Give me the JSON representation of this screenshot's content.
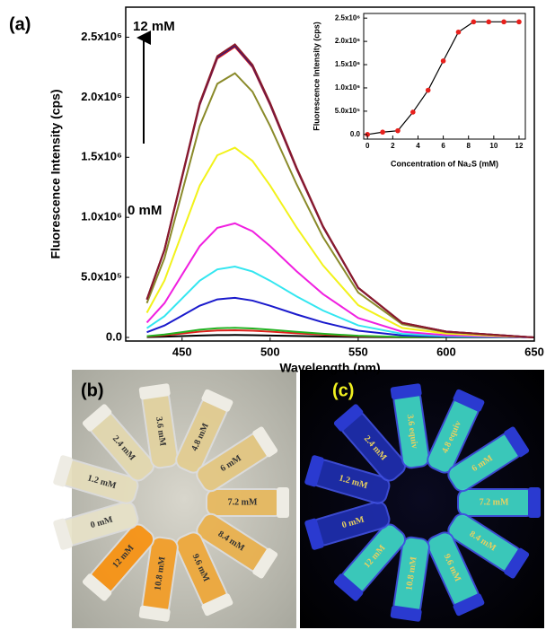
{
  "chart_data": [
    {
      "type": "line",
      "panel": "(a)",
      "xlabel": "Wavelength (nm)",
      "ylabel": "Fluorescence Intensity (cps)",
      "annotations": [
        "12 mM",
        "0 mM"
      ],
      "xlim": [
        418,
        650
      ],
      "xticks": [
        450,
        500,
        550,
        600,
        650
      ],
      "ylim": [
        -30000,
        2750000
      ],
      "yticks": [
        {
          "value": 0,
          "label": "0.0"
        },
        {
          "value": 500000,
          "label": "5.0x10⁵"
        },
        {
          "value": 1000000,
          "label": "1.0x10⁶"
        },
        {
          "value": 1500000,
          "label": "1.5x10⁶"
        },
        {
          "value": 2000000,
          "label": "2.0x10⁶"
        },
        {
          "value": 2500000,
          "label": "2.5x10⁶"
        }
      ],
      "x": [
        430,
        440,
        450,
        460,
        470,
        480,
        490,
        500,
        515,
        530,
        550,
        575,
        600,
        650
      ],
      "series": [
        {
          "color": "#000000",
          "values": [
            2600,
            6000,
            11000,
            16000,
            19200,
            20000,
            18600,
            16000,
            11600,
            7600,
            3400,
            1000,
            400,
            0
          ]
        },
        {
          "color": "#e0201c",
          "values": [
            7800,
            18000,
            33000,
            48000,
            57600,
            60000,
            55800,
            48000,
            34800,
            22800,
            10200,
            3000,
            1200,
            0
          ]
        },
        {
          "color": "#22b222",
          "values": [
            10400,
            24000,
            44000,
            64000,
            76800,
            80000,
            74400,
            64000,
            46400,
            30400,
            13600,
            4000,
            1600,
            0
          ]
        },
        {
          "color": "#1a1acc",
          "values": [
            42900,
            99000,
            181500,
            264000,
            316800,
            330000,
            306900,
            264000,
            191400,
            125400,
            56100,
            16500,
            6600,
            0
          ]
        },
        {
          "color": "#33e6f0",
          "values": [
            76700,
            177000,
            324500,
            472000,
            566400,
            590000,
            548700,
            472000,
            342200,
            224200,
            100300,
            29500,
            11800,
            0
          ]
        },
        {
          "color": "#f020e0",
          "values": [
            123500,
            285000,
            522500,
            760000,
            912000,
            950000,
            883500,
            760000,
            551000,
            361000,
            161500,
            47500,
            19000,
            0
          ]
        },
        {
          "color": "#f2f21a",
          "values": [
            205400,
            474000,
            869000,
            1264000,
            1516800,
            1580000,
            1469400,
            1264000,
            916400,
            600400,
            268600,
            79000,
            31600,
            0
          ]
        },
        {
          "color": "#8a8a2a",
          "values": [
            286000,
            660000,
            1210000,
            1760000,
            2112000,
            2200000,
            2046000,
            1760000,
            1276000,
            836000,
            374000,
            110000,
            44000,
            0
          ]
        },
        {
          "color": "#e0201c",
          "values": [
            314600,
            726000,
            1331000,
            1936000,
            2323200,
            2420000,
            2250600,
            1936000,
            1403600,
            919600,
            411400,
            121000,
            48400,
            0
          ]
        },
        {
          "color": "#1a1a8a",
          "values": [
            315900,
            729000,
            1336500,
            1944000,
            2332800,
            2430000,
            2259900,
            1944000,
            1409400,
            923400,
            413100,
            121500,
            48600,
            0
          ]
        },
        {
          "color": "#8b1a2a",
          "values": [
            317200,
            732000,
            1342000,
            1952000,
            2342400,
            2440000,
            2269200,
            1952000,
            1415200,
            927200,
            414800,
            122000,
            48800,
            0
          ]
        }
      ]
    },
    {
      "type": "line",
      "xlabel": "Concentration of Na₂S (mM)",
      "ylabel": "Fluorescence Intensity (cps)",
      "xlim": [
        -0.3,
        12.5
      ],
      "xticks": [
        0,
        2,
        4,
        6,
        8,
        10,
        12
      ],
      "ylim": [
        -100000,
        2600000
      ],
      "yticks": [
        {
          "value": 0,
          "label": "0.0"
        },
        {
          "value": 500000,
          "label": "5.0x10⁵"
        },
        {
          "value": 1000000,
          "label": "1.0x10⁶"
        },
        {
          "value": 1500000,
          "label": "1.5x10⁶"
        },
        {
          "value": 2000000,
          "label": "2.0x10⁶"
        },
        {
          "value": 2500000,
          "label": "2.5x10⁶"
        }
      ],
      "x": [
        0,
        1.2,
        2.4,
        3.6,
        4.8,
        6,
        7.2,
        8.4,
        9.6,
        10.8,
        12
      ],
      "series": [
        {
          "color": "#000000",
          "marker_color": "#e8201c",
          "values": [
            0,
            50000,
            80000,
            480000,
            950000,
            1580000,
            2200000,
            2420000,
            2420000,
            2420000,
            2420000
          ]
        }
      ]
    }
  ],
  "photos": [
    {
      "panel": "(b)",
      "tubes": [
        "7.2 mM",
        "8.4 mM",
        "9.6 mM",
        "10.8 mM",
        "12 mM",
        "0 mM",
        "1.2 mM",
        "2.4 mM",
        "3.6 mM",
        "4.8 mM",
        "6 mM"
      ]
    },
    {
      "panel": "(c)",
      "tubes": [
        "7.2 mM",
        "8.4 mM",
        "9.6 mM",
        "10.8 mM",
        "12 mM",
        "0 mM",
        "1.2 mM",
        "2.4 mM",
        "3.6 equiv",
        "4.8 equiv",
        "6 mM"
      ]
    }
  ]
}
